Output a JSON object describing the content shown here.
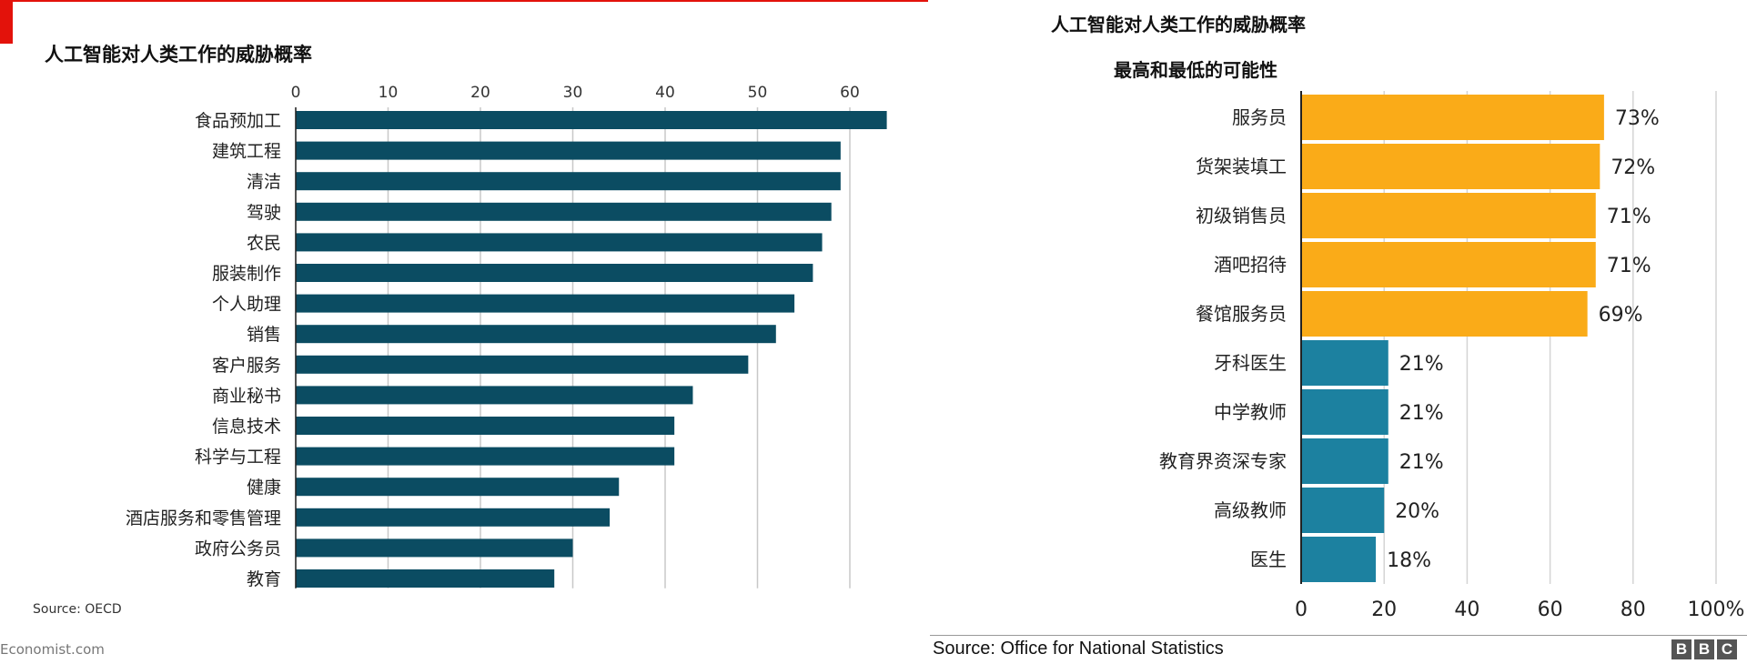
{
  "chart_data": [
    {
      "type": "bar",
      "orientation": "horizontal",
      "title": "人工智能对人类工作的威胁概率",
      "categories": [
        "食品预加工",
        "建筑工程",
        "清洁",
        "驾驶",
        "农民",
        "服装制作",
        "个人助理",
        "销售",
        "客户服务",
        "商业秘书",
        "信息技术",
        "科学与工程",
        "健康",
        "酒店服务和零售管理",
        "政府公务员",
        "教育"
      ],
      "values": [
        64,
        59,
        59,
        58,
        57,
        56,
        54,
        52,
        49,
        43,
        41,
        41,
        35,
        34,
        30,
        28
      ],
      "xlim": [
        0,
        65
      ],
      "xticks": [
        0,
        10,
        20,
        30,
        40,
        50,
        60
      ],
      "xaxis_position": "top",
      "grid": true,
      "bar_color": "#0b4c62",
      "source": "Source: OECD",
      "credit": "Economist.com"
    },
    {
      "type": "bar",
      "orientation": "horizontal",
      "title": "人工智能对人类工作的威胁概率",
      "subtitle": "最高和最低的可能性",
      "categories": [
        "服务员",
        "货架装填工",
        "初级销售员",
        "酒吧招待",
        "餐馆服务员",
        "牙科医生",
        "中学教师",
        "教育界资深专家",
        "高级教师",
        "医生"
      ],
      "values": [
        73,
        72,
        71,
        71,
        69,
        21,
        21,
        21,
        20,
        18
      ],
      "data_labels": [
        "73%",
        "72%",
        "71%",
        "71%",
        "69%",
        "21%",
        "21%",
        "21%",
        "20%",
        "18%"
      ],
      "bar_colors": [
        "#faab18",
        "#faab18",
        "#faab18",
        "#faab18",
        "#faab18",
        "#1c81a0",
        "#1c81a0",
        "#1c81a0",
        "#1c81a0",
        "#1c81a0"
      ],
      "xlim": [
        0,
        100
      ],
      "xticks": [
        "0",
        "20",
        "40",
        "60",
        "80",
        "100%"
      ],
      "xaxis_position": "bottom",
      "grid": true,
      "source": "Source: Office for National Statistics",
      "credit": "BBC"
    }
  ]
}
